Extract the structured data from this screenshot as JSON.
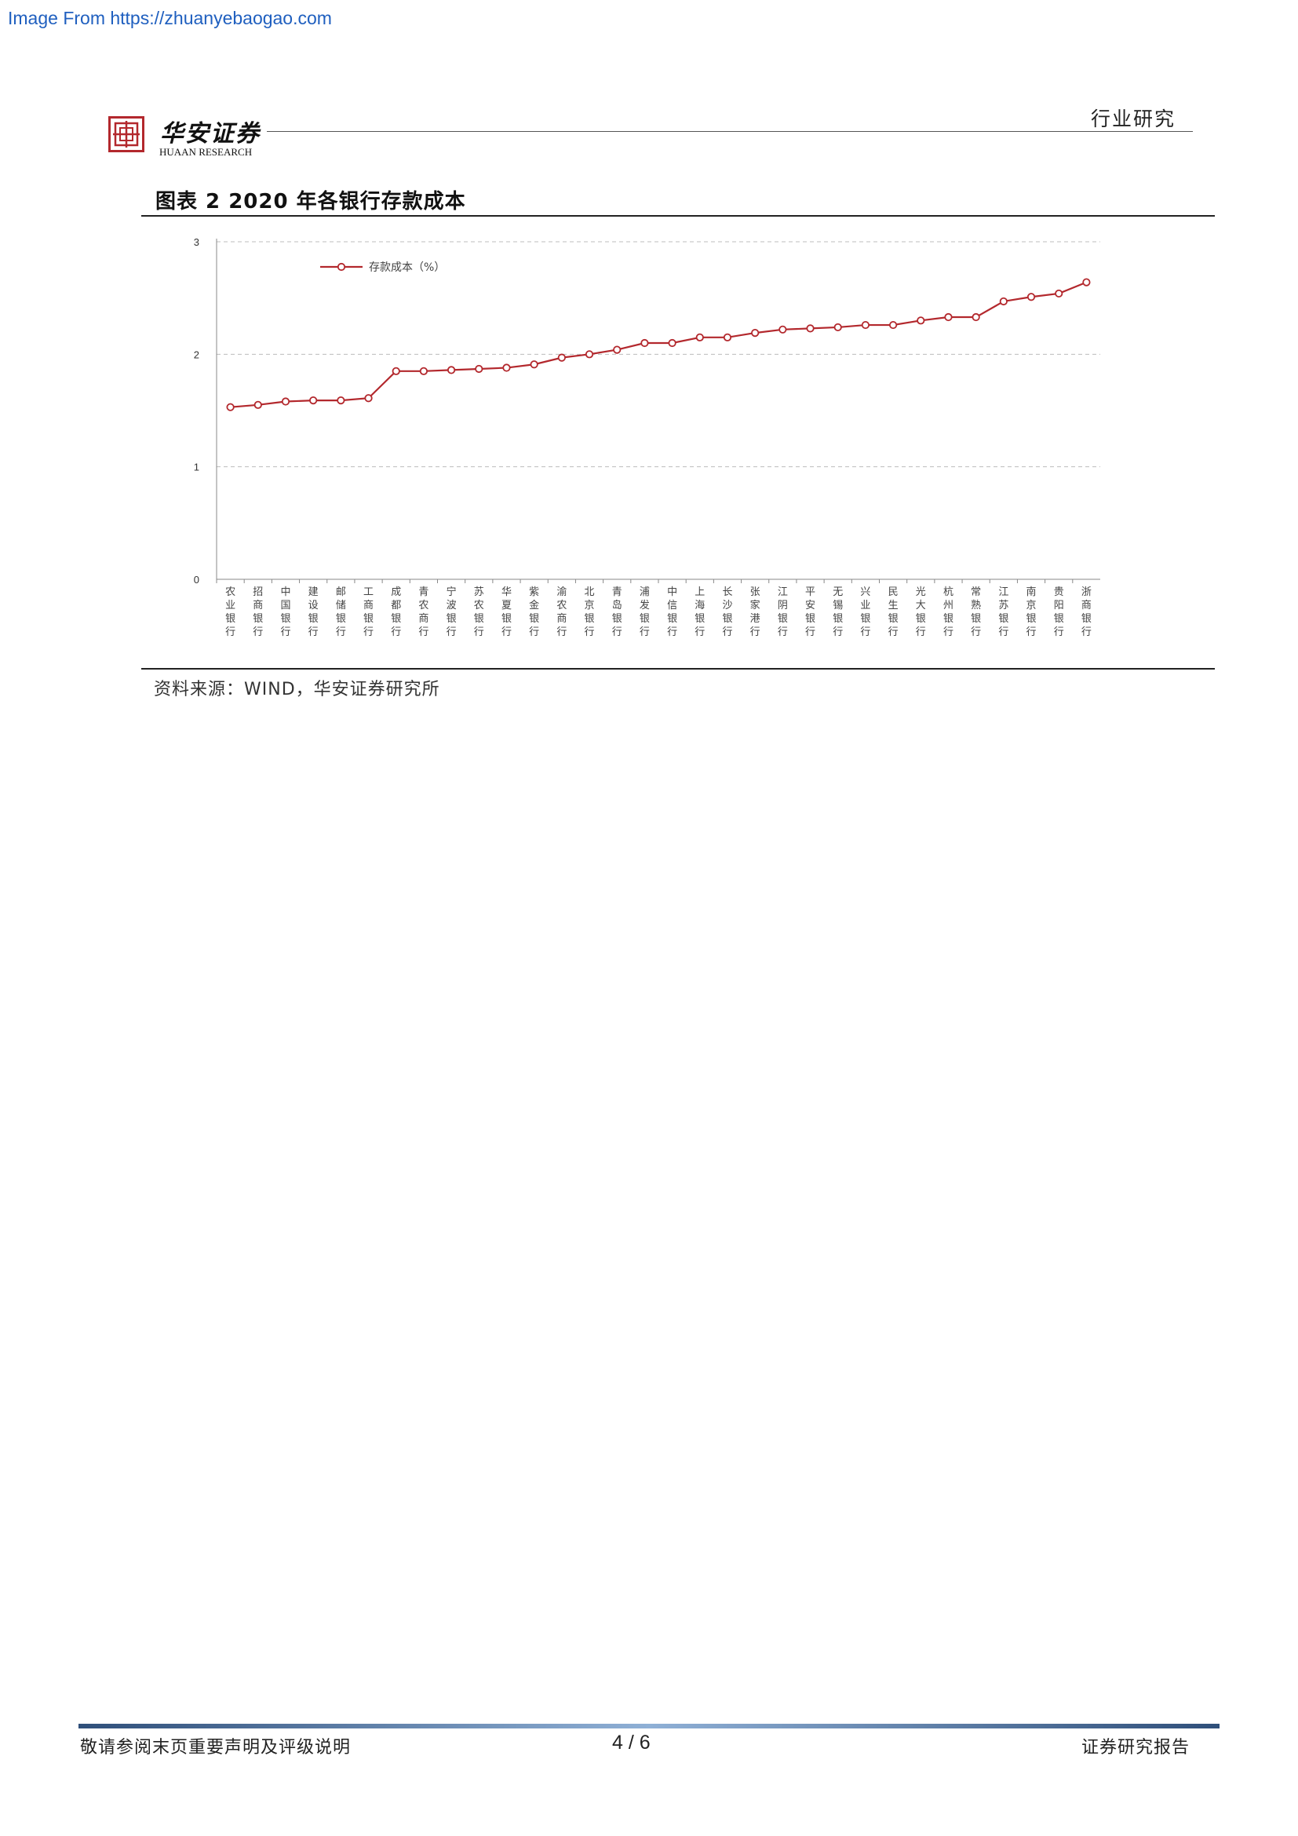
{
  "watermark": "Image From https://zhuanyebaogao.com",
  "header": {
    "brand_name": "华安证券",
    "brand_sub": "HUAAN RESEARCH",
    "section": "行业研究"
  },
  "figure": {
    "title": "图表  2 2020 年各银行存款成本",
    "source": "资料来源：WIND，华安证券研究所"
  },
  "chart_data": {
    "type": "line",
    "series": [
      {
        "name": "存款成本（%）",
        "values": [
          1.53,
          1.55,
          1.58,
          1.59,
          1.59,
          1.61,
          1.85,
          1.85,
          1.86,
          1.87,
          1.88,
          1.91,
          1.97,
          2.0,
          2.04,
          2.1,
          2.1,
          2.15,
          2.15,
          2.19,
          2.22,
          2.23,
          2.24,
          2.26,
          2.26,
          2.3,
          2.33,
          2.33,
          2.47,
          2.51,
          2.54,
          2.64
        ]
      }
    ],
    "categories": [
      "农业银行",
      "招商银行",
      "中国银行",
      "建设银行",
      "邮储银行",
      "工商银行",
      "成都银行",
      "青农商行",
      "宁波银行",
      "苏农银行",
      "华夏银行",
      "紫金银行",
      "渝农商行",
      "北京银行",
      "青岛银行",
      "浦发银行",
      "中信银行",
      "上海银行",
      "长沙银行",
      "张家港行",
      "江阴银行",
      "平安银行",
      "无锡银行",
      "兴业银行",
      "民生银行",
      "光大银行",
      "杭州银行",
      "常熟银行",
      "江苏银行",
      "南京银行",
      "贵阳银行",
      "浙商银行"
    ],
    "y_ticks": [
      "0",
      "1",
      "2",
      "3"
    ],
    "ylim": [
      0,
      3
    ],
    "grid": true,
    "legend": "top-left",
    "line_color": "#b3282d"
  },
  "footer": {
    "left": "敬请参阅末页重要声明及评级说明",
    "page": "4 / 6",
    "right": "证券研究报告"
  }
}
